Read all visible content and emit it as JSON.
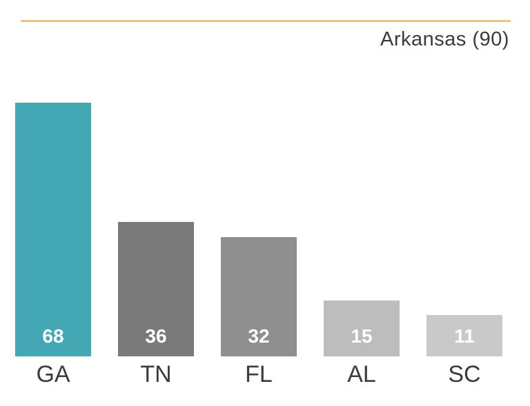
{
  "header": {
    "title": "Arkansas (90)",
    "rule_color": "#EAC57C"
  },
  "chart_data": {
    "type": "bar",
    "title": "Arkansas (90)",
    "categories": [
      "GA",
      "TN",
      "FL",
      "AL",
      "SC"
    ],
    "values": [
      68,
      36,
      32,
      15,
      11
    ],
    "bar_colors": [
      "#43A8B3",
      "#7A7A7A",
      "#8F8F8F",
      "#BDBDBD",
      "#C9C9C9"
    ],
    "xlabel": "",
    "ylabel": "",
    "ylim": [
      0,
      68
    ],
    "grid": false,
    "legend_position": "none",
    "value_labels": "inside-bottom",
    "value_label_color": "#FFFFFF",
    "category_label_color": "#3B3B3B"
  }
}
